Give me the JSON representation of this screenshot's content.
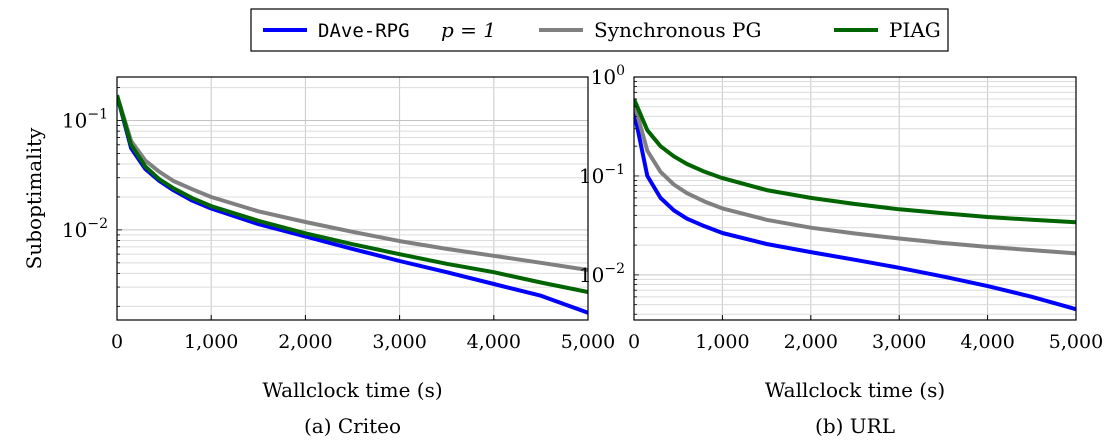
{
  "legend": {
    "placement": "top-center",
    "entries": [
      {
        "code": "DAve-RPG",
        "math_label": "p = 1",
        "color": "#0000ff"
      },
      {
        "label": "Synchronous PG",
        "color": "#808080"
      },
      {
        "label": "PIAG",
        "color": "#006400"
      }
    ]
  },
  "chart_data": [
    {
      "type": "line",
      "caption": "(a) Criteo",
      "xlabel": "Wallclock time (s)",
      "ylabel": "Suboptimality",
      "xlim": [
        0,
        5000
      ],
      "ylim": [
        0.0015,
        0.25
      ],
      "yscale": "log",
      "grid": true,
      "x_ticks": [
        "0",
        "1,000",
        "2,000",
        "3,000",
        "4,000",
        "5,000"
      ],
      "y_ticks": [
        "10^-1",
        "10^-2"
      ],
      "series": [
        {
          "name": "DAve-RPG p = 1",
          "color": "#0000ff",
          "x": [
            0,
            150,
            300,
            450,
            600,
            800,
            1000,
            1500,
            2000,
            2500,
            3000,
            3500,
            4000,
            4500,
            5000
          ],
          "y": [
            0.17,
            0.056,
            0.036,
            0.028,
            0.023,
            0.0185,
            0.0157,
            0.0113,
            0.0087,
            0.0067,
            0.0052,
            0.0041,
            0.0032,
            0.0025,
            0.00175
          ]
        },
        {
          "name": "Synchronous PG",
          "color": "#808080",
          "x": [
            0,
            150,
            300,
            450,
            600,
            800,
            1000,
            1500,
            2000,
            2500,
            3000,
            3500,
            4000,
            4500,
            5000
          ],
          "y": [
            0.17,
            0.065,
            0.043,
            0.034,
            0.028,
            0.0235,
            0.02,
            0.0148,
            0.0118,
            0.0096,
            0.0079,
            0.0067,
            0.0058,
            0.005,
            0.0043
          ]
        },
        {
          "name": "PIAG",
          "color": "#006400",
          "x": [
            0,
            150,
            300,
            450,
            600,
            800,
            1000,
            1500,
            2000,
            2500,
            3000,
            3500,
            4000,
            4500,
            5000
          ],
          "y": [
            0.17,
            0.06,
            0.038,
            0.029,
            0.024,
            0.0195,
            0.0165,
            0.0121,
            0.0093,
            0.0074,
            0.006,
            0.0049,
            0.0041,
            0.0033,
            0.0027
          ]
        }
      ]
    },
    {
      "type": "line",
      "caption": "(b) URL",
      "xlabel": "Wallclock time (s)",
      "ylabel": "",
      "xlim": [
        0,
        5000
      ],
      "ylim": [
        0.0035,
        1.0
      ],
      "yscale": "log",
      "grid": true,
      "x_ticks": [
        "0",
        "1,000",
        "2,000",
        "3,000",
        "4,000",
        "5,000"
      ],
      "y_ticks": [
        "10^0",
        "10^-1",
        "10^-2"
      ],
      "series": [
        {
          "name": "DAve-RPG p = 1",
          "color": "#0000ff",
          "x": [
            0,
            150,
            300,
            450,
            600,
            800,
            1000,
            1500,
            2000,
            2500,
            3000,
            3500,
            4000,
            4500,
            5000
          ],
          "y": [
            0.45,
            0.1,
            0.06,
            0.045,
            0.037,
            0.031,
            0.0265,
            0.0205,
            0.017,
            0.0142,
            0.0118,
            0.0096,
            0.0077,
            0.006,
            0.0045
          ]
        },
        {
          "name": "Synchronous PG",
          "color": "#808080",
          "x": [
            0,
            150,
            300,
            450,
            600,
            800,
            1000,
            1500,
            2000,
            2500,
            3000,
            3500,
            4000,
            4500,
            5000
          ],
          "y": [
            0.55,
            0.18,
            0.11,
            0.082,
            0.067,
            0.055,
            0.047,
            0.036,
            0.03,
            0.0262,
            0.0233,
            0.021,
            0.0192,
            0.0178,
            0.0165
          ]
        },
        {
          "name": "PIAG",
          "color": "#006400",
          "x": [
            0,
            150,
            300,
            450,
            600,
            800,
            1000,
            1500,
            2000,
            2500,
            3000,
            3500,
            4000,
            4500,
            5000
          ],
          "y": [
            0.6,
            0.29,
            0.2,
            0.158,
            0.132,
            0.11,
            0.095,
            0.072,
            0.06,
            0.052,
            0.046,
            0.042,
            0.0385,
            0.036,
            0.034
          ]
        }
      ]
    }
  ]
}
